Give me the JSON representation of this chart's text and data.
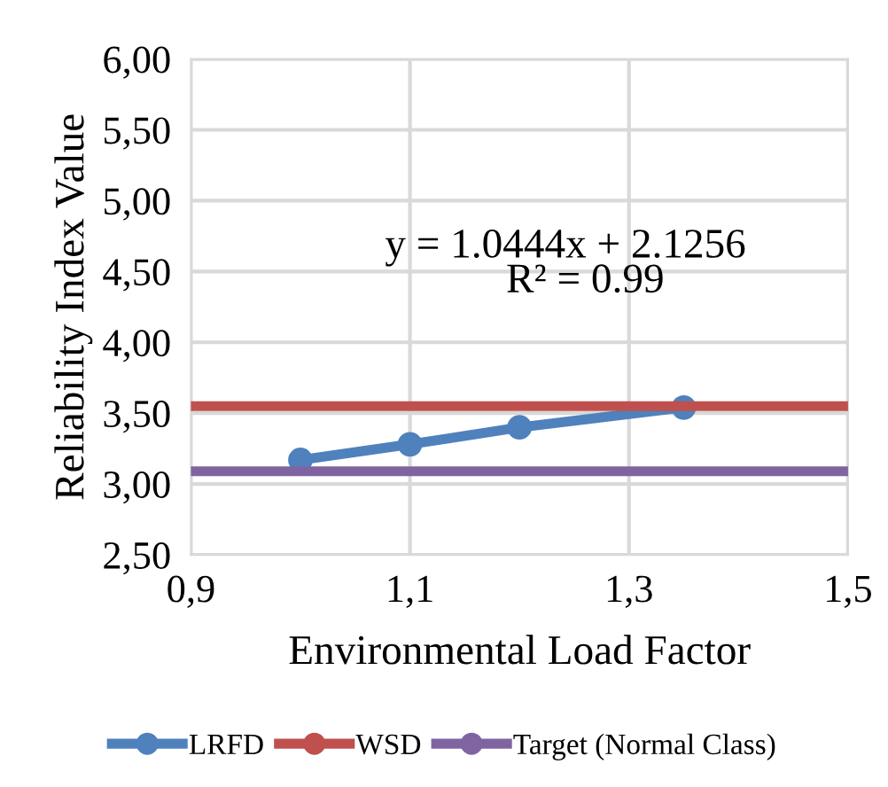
{
  "chart_data": {
    "type": "line",
    "xlabel": "Environmental Load Factor",
    "ylabel": "Reliability Index Value",
    "xlim": [
      0.9,
      1.5
    ],
    "xticks": [
      {
        "value": 0.9,
        "label": "0,9"
      },
      {
        "value": 1.1,
        "label": "1,1"
      },
      {
        "value": 1.3,
        "label": "1,3"
      },
      {
        "value": 1.5,
        "label": "1,5"
      }
    ],
    "ylim": [
      2.5,
      6.0
    ],
    "yticks": [
      {
        "value": 2.5,
        "label": "2,50"
      },
      {
        "value": 3.0,
        "label": "3,00"
      },
      {
        "value": 3.5,
        "label": "3,50"
      },
      {
        "value": 4.0,
        "label": "4,00"
      },
      {
        "value": 4.5,
        "label": "4,50"
      },
      {
        "value": 5.0,
        "label": "5,00"
      },
      {
        "value": 5.5,
        "label": "5,50"
      },
      {
        "value": 6.0,
        "label": "6,00"
      }
    ],
    "grid": true,
    "legend": "bottom",
    "marker": "circle",
    "line_style": "solid",
    "series": [
      {
        "name": "LRFD",
        "color": "#4f81bd",
        "x": [
          1.0,
          1.1,
          1.2,
          1.35
        ],
        "values": [
          3.17,
          3.28,
          3.4,
          3.54
        ]
      },
      {
        "name": "WSD",
        "color": "#c0504d",
        "x": [
          0.9,
          1.5
        ],
        "values": [
          3.55,
          3.55
        ],
        "marker": "none"
      },
      {
        "name": "Target (Normal Class)",
        "color": "#8064a2",
        "x": [
          0.9,
          1.5
        ],
        "values": [
          3.09,
          3.09
        ],
        "marker": "none"
      }
    ],
    "annotations": [
      "y = 1.0444x + 2.1256",
      "R² = 0.99"
    ]
  }
}
